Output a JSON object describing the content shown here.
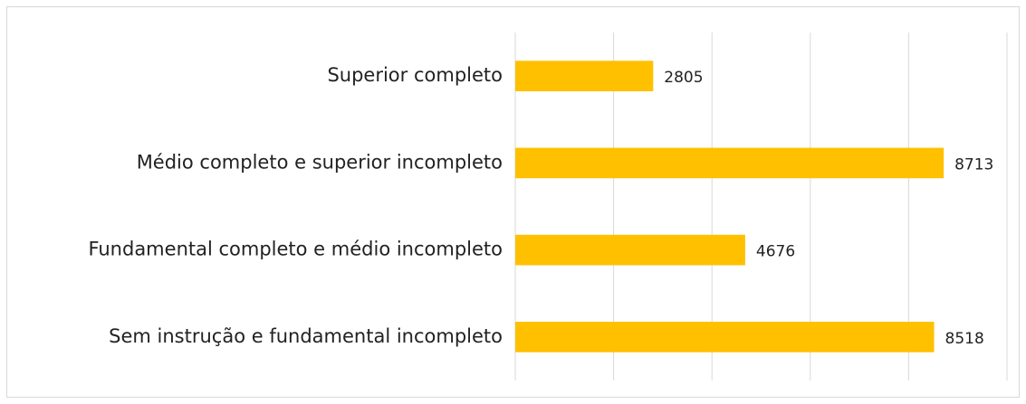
{
  "chart_data": {
    "type": "bar",
    "orientation": "horizontal",
    "categories": [
      "Superior completo",
      "Médio completo e superior incompleto",
      "Fundamental completo e médio incompleto",
      "Sem instrução e fundamental incompleto"
    ],
    "values": [
      2805,
      8713,
      4676,
      8518
    ],
    "color": "#FFC000",
    "xlim": [
      0,
      10000
    ],
    "xticks": [
      0,
      2000,
      4000,
      6000,
      8000,
      10000
    ],
    "grid": true
  }
}
